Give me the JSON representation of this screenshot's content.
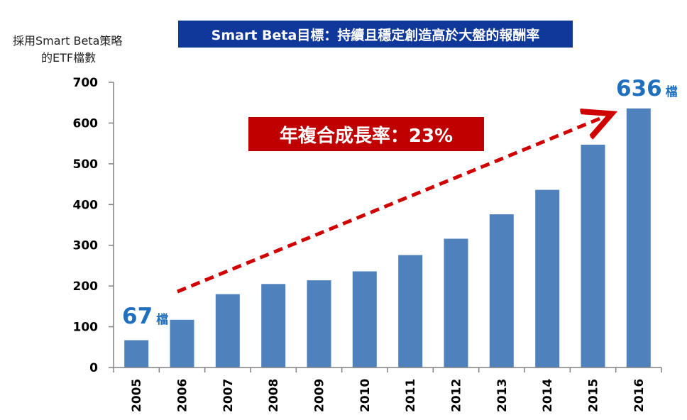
{
  "title": "Smart Beta目標：持續且穩定創造高於大盤的報酬率",
  "ylabel_line1": "採用Smart Beta策略",
  "ylabel_line2": "的ETF檔數",
  "cagr_label": "年複合成長率：23%",
  "callout_start": {
    "value": "67",
    "unit": "檔"
  },
  "callout_end": {
    "value": "636",
    "unit": "檔"
  },
  "colors": {
    "bar": "#4f81bd",
    "arrow": "#d00000",
    "banner": "#10389a",
    "callout": "#1f6fbf"
  },
  "chart_data": {
    "type": "bar",
    "title": "Smart Beta目標：持續且穩定創造高於大盤的報酬率",
    "xlabel": "",
    "ylabel": "採用Smart Beta策略的ETF檔數",
    "categories": [
      "2005",
      "2006",
      "2007",
      "2008",
      "2009",
      "2010",
      "2011",
      "2012",
      "2013",
      "2014",
      "2015",
      "2016"
    ],
    "values": [
      67,
      117,
      180,
      205,
      214,
      236,
      276,
      316,
      376,
      436,
      547,
      636
    ],
    "ylim": [
      0,
      700
    ],
    "yticks": [
      0,
      100,
      200,
      300,
      400,
      500,
      600,
      700
    ],
    "grid": false,
    "annotations": [
      "年複合成長率：23%",
      "67 檔",
      "636 檔"
    ]
  }
}
